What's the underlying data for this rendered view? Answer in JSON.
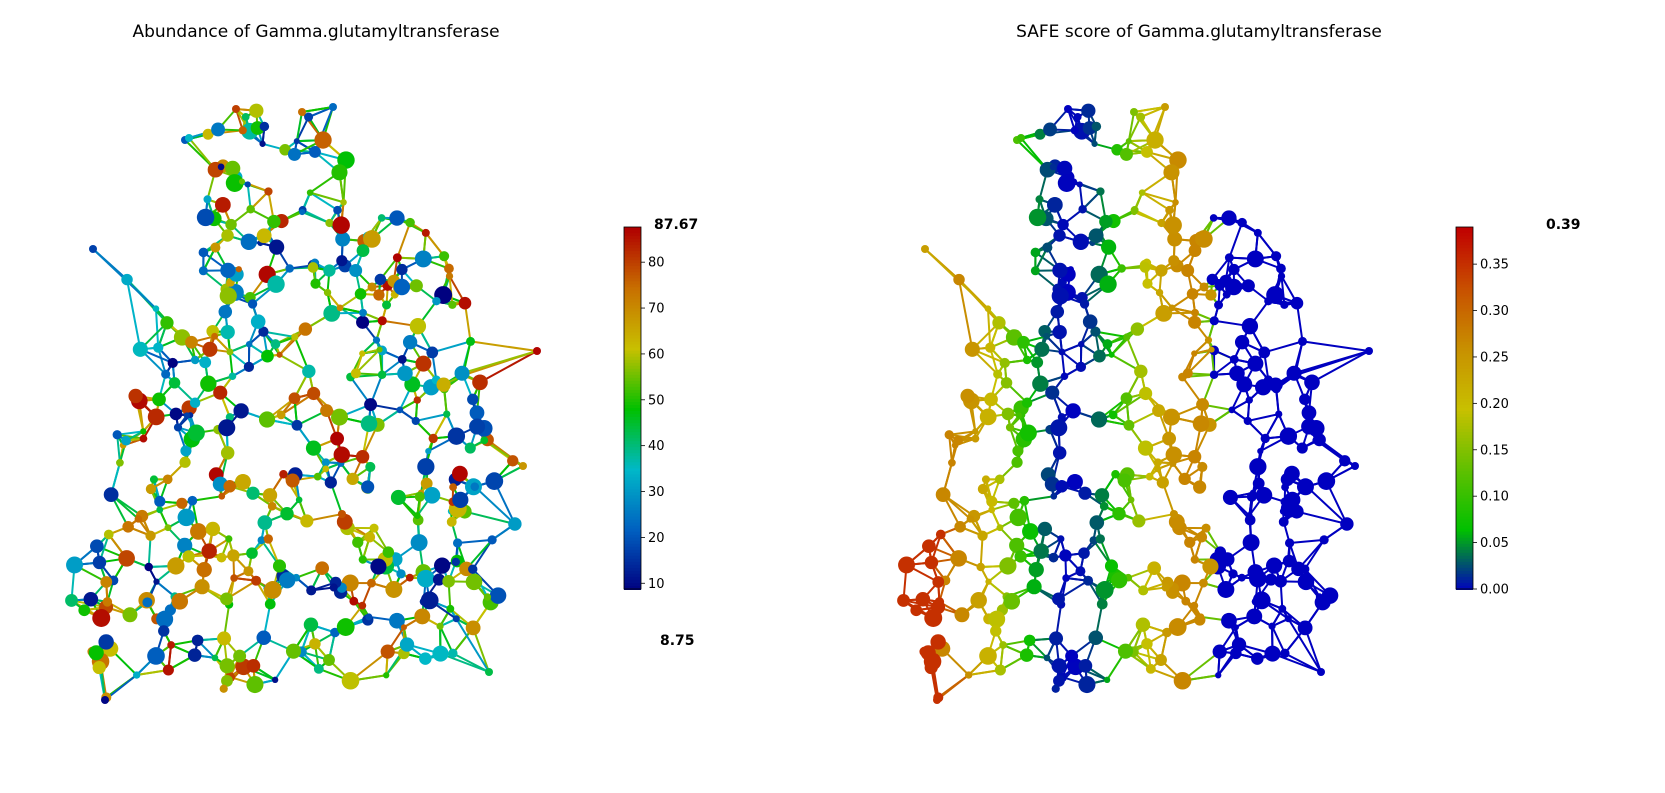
{
  "chart_data": [
    {
      "type": "network",
      "title": "Abundance of Gamma.glutamyltransferase",
      "colorbar": {
        "min_label": "8.75",
        "max_label": "87.67",
        "range": [
          8.75,
          87.67
        ],
        "ticks": [
          "10",
          "20",
          "30",
          "40",
          "50",
          "60",
          "70",
          "80"
        ],
        "tick_values": [
          10,
          20,
          30,
          40,
          50,
          60,
          70,
          80
        ],
        "colormap": [
          "#000080",
          "#0060c0",
          "#00b8c8",
          "#00c000",
          "#c8c000",
          "#c87000",
          "#b00000"
        ]
      }
    },
    {
      "type": "network",
      "title": "SAFE score of Gamma.glutamyltransferase",
      "colorbar": {
        "max_label": "0.39",
        "range": [
          0.0,
          0.39
        ],
        "ticks": [
          "0.00",
          "0.05",
          "0.10",
          "0.15",
          "0.20",
          "0.25",
          "0.30",
          "0.35"
        ],
        "tick_values": [
          0.0,
          0.05,
          0.1,
          0.15,
          0.2,
          0.25,
          0.3,
          0.35
        ],
        "colormap": [
          "#0000c0",
          "#00c000",
          "#60c000",
          "#c8c000",
          "#c89000",
          "#c85000",
          "#c00000"
        ]
      }
    }
  ]
}
